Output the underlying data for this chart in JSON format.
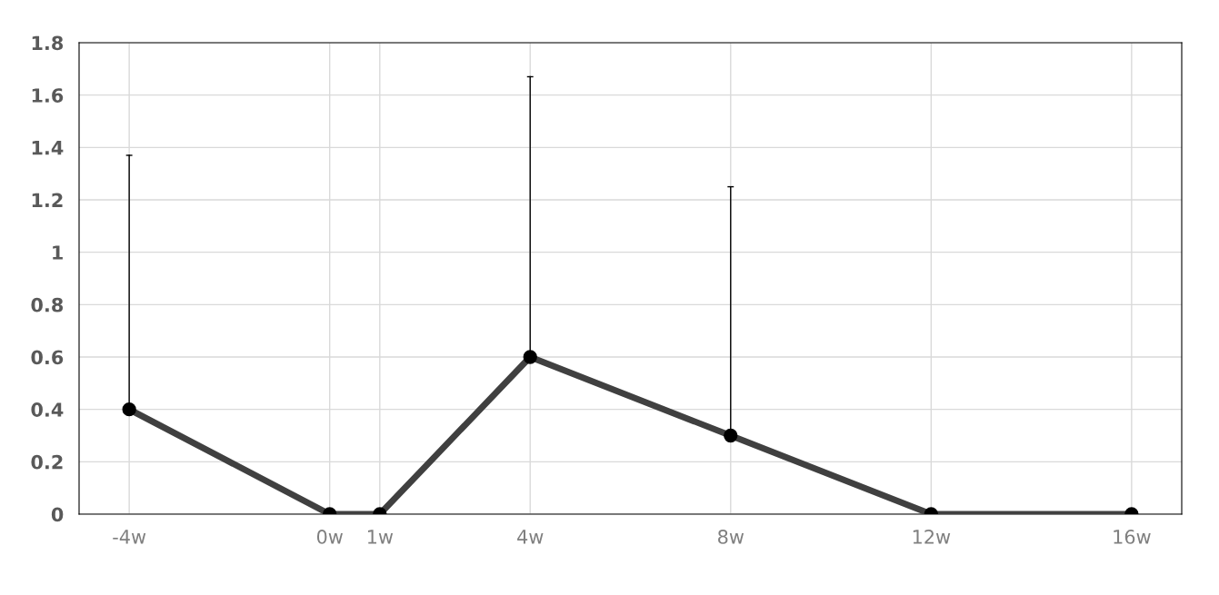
{
  "chart_data": {
    "type": "line",
    "x": [
      -4,
      0,
      1,
      4,
      8,
      12,
      16
    ],
    "series": [
      {
        "color": "#404040",
        "values": [
          0.4,
          0,
          0,
          0.6,
          0.3,
          0,
          0
        ],
        "errors": [
          [
            0.4,
            1.37
          ],
          null,
          null,
          [
            0.6,
            1.67
          ],
          [
            0.3,
            1.25
          ],
          null,
          null
        ]
      }
    ],
    "xlim": [
      -5,
      17
    ],
    "xticks": [
      {
        "value": -4,
        "label": "-4w"
      },
      {
        "value": 0,
        "label": "0w"
      },
      {
        "value": 1,
        "label": "1w"
      },
      {
        "value": 4,
        "label": "4w"
      },
      {
        "value": 8,
        "label": "8w"
      },
      {
        "value": 12,
        "label": "12w"
      },
      {
        "value": 16,
        "label": "16w"
      }
    ],
    "ylim": [
      0,
      1.8
    ],
    "yticks": [
      0,
      0.2,
      0.4,
      0.6,
      0.8,
      1,
      1.2,
      1.4,
      1.6,
      1.8
    ],
    "grid": true,
    "marker": "circle",
    "line_style": "solid",
    "legend": false
  }
}
